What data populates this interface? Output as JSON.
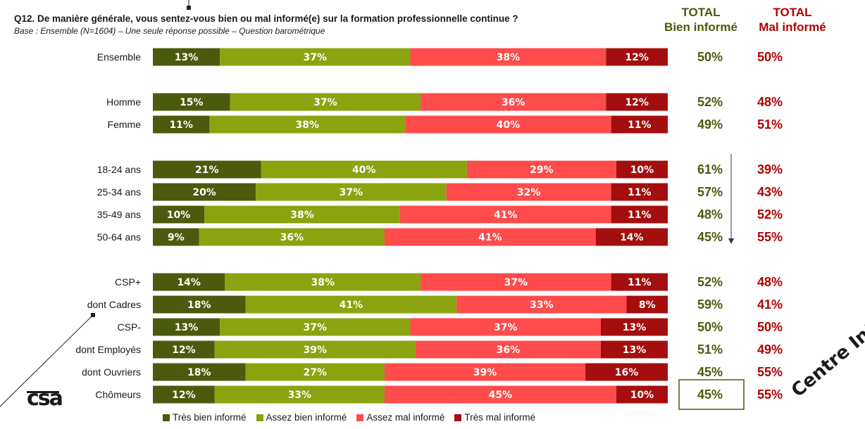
{
  "title": "Q12. De manière générale, vous sentez-vous bien ou mal informé(e) sur la formation professionnelle continue ?",
  "subtitle": "Base : Ensemble (N=1604) – Une seule réponse possible – Question barométrique",
  "headers": {
    "bien": "TOTAL\nBien informé",
    "bien_line1": "TOTAL",
    "bien_line2": "Bien informé",
    "mal_line1": "TOTAL",
    "mal_line2": "Mal informé"
  },
  "logo_text": "csa",
  "watermark": "Centre Inff",
  "colors": {
    "tres_bien": "#4b5a0c",
    "assez_bien": "#8aa30f",
    "assez_mal": "#ff4b4b",
    "tres_mal": "#a50e0e",
    "total_bien": "#4b5a0c",
    "total_mal": "#b00000"
  },
  "chart_data": {
    "type": "bar",
    "orientation": "horizontal-stacked-100",
    "series": [
      {
        "name": "Très bien informé"
      },
      {
        "name": "Assez bien informé"
      },
      {
        "name": "Assez mal informé"
      },
      {
        "name": "Très mal informé"
      }
    ],
    "rows": [
      {
        "label": "Ensemble",
        "values": [
          13,
          37,
          38,
          12
        ],
        "total_bien": "50%",
        "total_mal": "50%"
      },
      {
        "label": "Homme",
        "values": [
          15,
          37,
          36,
          12
        ],
        "total_bien": "52%",
        "total_mal": "48%"
      },
      {
        "label": "Femme",
        "values": [
          11,
          38,
          40,
          11
        ],
        "total_bien": "49%",
        "total_mal": "51%"
      },
      {
        "label": "18-24 ans",
        "values": [
          21,
          40,
          29,
          10
        ],
        "total_bien": "61%",
        "total_mal": "39%"
      },
      {
        "label": "25-34 ans",
        "values": [
          20,
          37,
          32,
          11
        ],
        "total_bien": "57%",
        "total_mal": "43%"
      },
      {
        "label": "35-49 ans",
        "values": [
          10,
          38,
          41,
          11
        ],
        "total_bien": "48%",
        "total_mal": "52%"
      },
      {
        "label": "50-64 ans",
        "values": [
          9,
          36,
          41,
          14
        ],
        "total_bien": "45%",
        "total_mal": "55%"
      },
      {
        "label": "CSP+",
        "values": [
          14,
          38,
          37,
          11
        ],
        "total_bien": "52%",
        "total_mal": "48%"
      },
      {
        "label": "dont Cadres",
        "values": [
          18,
          41,
          33,
          8
        ],
        "total_bien": "59%",
        "total_mal": "41%"
      },
      {
        "label": "CSP-",
        "values": [
          13,
          37,
          37,
          13
        ],
        "total_bien": "50%",
        "total_mal": "50%"
      },
      {
        "label": "dont Employés",
        "values": [
          12,
          39,
          36,
          13
        ],
        "total_bien": "51%",
        "total_mal": "49%"
      },
      {
        "label": "dont Ouvriers",
        "values": [
          18,
          27,
          39,
          16
        ],
        "total_bien": "45%",
        "total_mal": "55%"
      },
      {
        "label": "Chômeurs",
        "values": [
          12,
          33,
          45,
          10
        ],
        "total_bien": "45%",
        "total_mal": "55%"
      }
    ],
    "legend_position": "bottom",
    "highlighted_row": "Chômeurs",
    "trend_arrow_rows": [
      "18-24 ans",
      "50-64 ans"
    ]
  }
}
